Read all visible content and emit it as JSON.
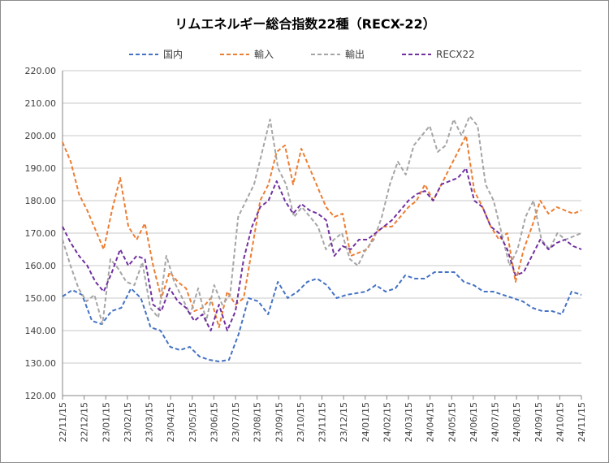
{
  "chart_data": {
    "type": "line",
    "title": "リムエネルギー総合指数22種（RECX-22）",
    "xlabel": "",
    "ylabel": "",
    "ylim": [
      120,
      220
    ],
    "y_ticks": [
      "120.00",
      "130.00",
      "140.00",
      "150.00",
      "160.00",
      "170.00",
      "180.00",
      "190.00",
      "200.00",
      "210.00",
      "220.00"
    ],
    "x_ticks": [
      "22/11/15",
      "22/12/15",
      "23/01/15",
      "23/02/15",
      "23/03/15",
      "23/04/15",
      "23/05/15",
      "23/06/15",
      "23/07/15",
      "23/08/15",
      "23/09/15",
      "23/10/15",
      "23/11/15",
      "23/12/15",
      "24/01/15",
      "24/02/15",
      "24/03/15",
      "24/04/15",
      "24/05/15",
      "24/06/15",
      "24/07/15",
      "24/08/15",
      "24/09/15",
      "24/10/15",
      "24/11/15"
    ],
    "grid": "horizontal",
    "legend_position": "top",
    "series": [
      {
        "name": "国内",
        "color": "#4472c4",
        "values": [
          150.5,
          152.5,
          151,
          143,
          142,
          146,
          147,
          153,
          150,
          141,
          140,
          135,
          134,
          135,
          132,
          131,
          130.5,
          131,
          139,
          150,
          149,
          145,
          155,
          150,
          152,
          155,
          156,
          154,
          150,
          151,
          151.5,
          152,
          154,
          152,
          153,
          157,
          156,
          156,
          158,
          158,
          158,
          155,
          154,
          152,
          152,
          151,
          150,
          149,
          147,
          146,
          146,
          145,
          152,
          151
        ]
      },
      {
        "name": "輸入",
        "color": "#ed7d31",
        "values": [
          198,
          192,
          182,
          177,
          171,
          165,
          177,
          187,
          172,
          168,
          173,
          160,
          150,
          158,
          155,
          153,
          146,
          147,
          150,
          141,
          152,
          148,
          150,
          165,
          180,
          185,
          195,
          197,
          185,
          196,
          190,
          184,
          178,
          175,
          176,
          163,
          164,
          165,
          170,
          172,
          172,
          175,
          178,
          180,
          185,
          180,
          185,
          190,
          195,
          200,
          183,
          178,
          172,
          168,
          170,
          155,
          165,
          172,
          180,
          176,
          178,
          177,
          176,
          177
        ]
      },
      {
        "name": "輸出",
        "color": "#a5a5a5",
        "values": [
          168,
          160,
          153,
          149,
          151,
          142,
          162,
          159,
          155,
          154,
          161,
          147,
          144,
          163,
          155,
          150,
          145,
          153,
          143,
          154,
          148,
          151,
          175,
          180,
          185,
          195,
          205,
          190,
          185,
          175,
          178,
          175,
          172,
          165,
          168,
          170,
          162,
          160,
          165,
          168,
          175,
          185,
          192,
          188,
          197,
          200,
          203,
          195,
          197,
          205,
          200,
          206,
          203,
          185,
          180,
          170,
          160,
          165,
          175,
          180,
          168,
          165,
          170,
          168,
          169,
          170
        ]
      },
      {
        "name": "RECX22",
        "color": "#7030a0",
        "values": [
          172,
          167,
          163,
          160,
          155,
          152,
          158,
          165,
          160,
          163,
          162,
          148,
          146,
          153,
          149,
          147,
          143,
          145,
          140,
          148,
          140,
          146,
          162,
          172,
          178,
          180,
          186,
          180,
          176,
          179,
          177,
          176,
          174,
          163,
          166,
          165,
          168,
          168,
          170,
          172,
          174,
          177,
          180,
          182,
          183,
          180,
          185,
          186,
          187,
          190,
          180,
          178,
          172,
          170,
          165,
          157,
          158,
          163,
          168,
          165,
          167,
          168,
          166,
          165
        ]
      }
    ]
  }
}
